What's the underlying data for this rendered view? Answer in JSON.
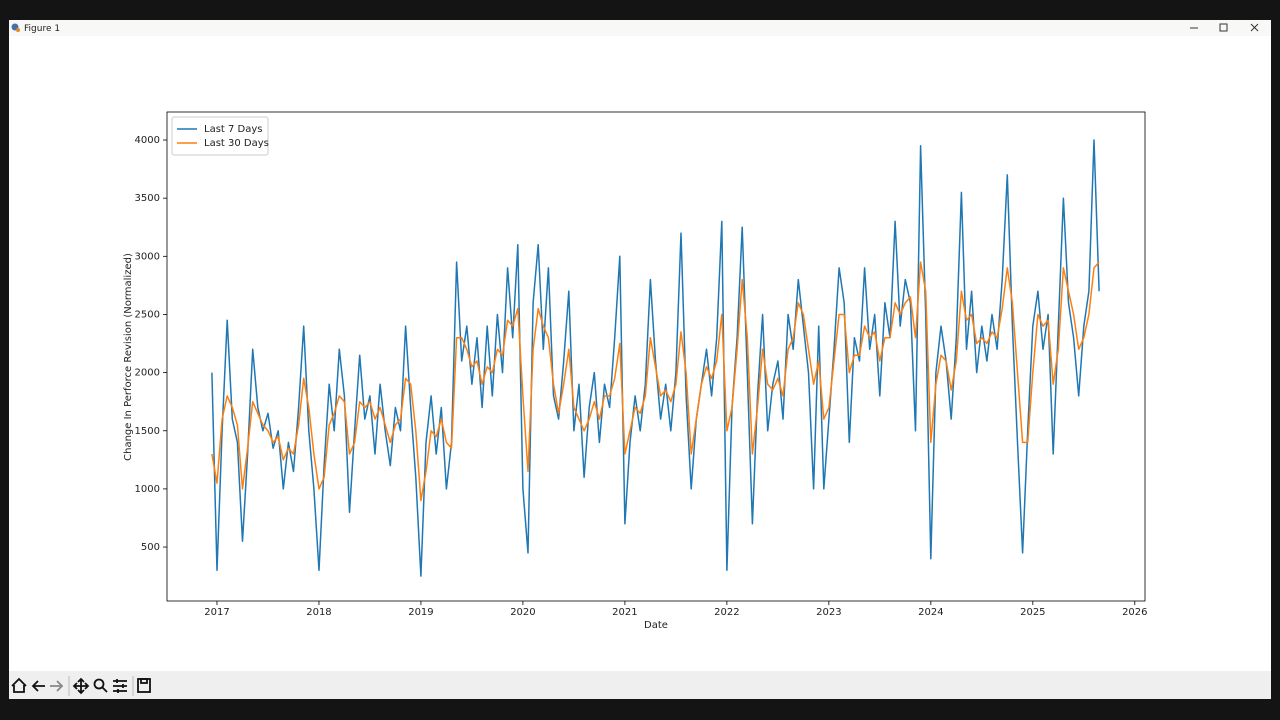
{
  "window": {
    "title": "Figure 1"
  },
  "chart_data": {
    "type": "line",
    "xlabel": "Date",
    "ylabel": "Change In Perforce Revision (Normalized)",
    "legend": "upper left",
    "grid": false,
    "xlim": [
      2016.51,
      2026.1
    ],
    "ylim": [
      36,
      4241
    ],
    "xticks": [
      2017,
      2018,
      2019,
      2020,
      2021,
      2022,
      2023,
      2024,
      2025,
      2026
    ],
    "yticks": [
      500,
      1000,
      1500,
      2000,
      2500,
      3000,
      3500,
      4000
    ],
    "x": [
      2016.95,
      2017.0,
      2017.05,
      2017.1,
      2017.15,
      2017.2,
      2017.25,
      2017.3,
      2017.35,
      2017.4,
      2017.45,
      2017.5,
      2017.55,
      2017.6,
      2017.65,
      2017.7,
      2017.75,
      2017.8,
      2017.85,
      2017.9,
      2017.95,
      2018.0,
      2018.05,
      2018.1,
      2018.15,
      2018.2,
      2018.25,
      2018.3,
      2018.35,
      2018.4,
      2018.45,
      2018.5,
      2018.55,
      2018.6,
      2018.65,
      2018.7,
      2018.75,
      2018.8,
      2018.85,
      2018.9,
      2018.95,
      2019.0,
      2019.05,
      2019.1,
      2019.15,
      2019.2,
      2019.25,
      2019.3,
      2019.35,
      2019.4,
      2019.45,
      2019.5,
      2019.55,
      2019.6,
      2019.65,
      2019.7,
      2019.75,
      2019.8,
      2019.85,
      2019.9,
      2019.95,
      2020.0,
      2020.05,
      2020.1,
      2020.15,
      2020.2,
      2020.25,
      2020.3,
      2020.35,
      2020.4,
      2020.45,
      2020.5,
      2020.55,
      2020.6,
      2020.65,
      2020.7,
      2020.75,
      2020.8,
      2020.85,
      2020.9,
      2020.95,
      2021.0,
      2021.05,
      2021.1,
      2021.15,
      2021.2,
      2021.25,
      2021.3,
      2021.35,
      2021.4,
      2021.45,
      2021.5,
      2021.55,
      2021.6,
      2021.65,
      2021.7,
      2021.75,
      2021.8,
      2021.85,
      2021.9,
      2021.95,
      2022.0,
      2022.05,
      2022.1,
      2022.15,
      2022.2,
      2022.25,
      2022.3,
      2022.35,
      2022.4,
      2022.45,
      2022.5,
      2022.55,
      2022.6,
      2022.65,
      2022.7,
      2022.75,
      2022.8,
      2022.85,
      2022.9,
      2022.95,
      2023.0,
      2023.05,
      2023.1,
      2023.15,
      2023.2,
      2023.25,
      2023.3,
      2023.35,
      2023.4,
      2023.45,
      2023.5,
      2023.55,
      2023.6,
      2023.65,
      2023.7,
      2023.75,
      2023.8,
      2023.85,
      2023.9,
      2023.95,
      2024.0,
      2024.05,
      2024.1,
      2024.15,
      2024.2,
      2024.25,
      2024.3,
      2024.35,
      2024.4,
      2024.45,
      2024.5,
      2024.55,
      2024.6,
      2024.65,
      2024.7,
      2024.75,
      2024.8,
      2024.85,
      2024.9,
      2024.95,
      2025.0,
      2025.05,
      2025.1,
      2025.15,
      2025.2,
      2025.25,
      2025.3,
      2025.35,
      2025.4,
      2025.45,
      2025.5,
      2025.55,
      2025.6,
      2025.65
    ],
    "series": [
      {
        "name": "Last 7 Days",
        "color": "#1f77b4",
        "values": [
          2000,
          300,
          1500,
          2450,
          1600,
          1400,
          550,
          1300,
          2200,
          1700,
          1500,
          1650,
          1350,
          1500,
          1000,
          1400,
          1150,
          1700,
          2400,
          1500,
          1000,
          300,
          1200,
          1900,
          1500,
          2200,
          1800,
          800,
          1500,
          2150,
          1600,
          1800,
          1300,
          1900,
          1500,
          1200,
          1700,
          1500,
          2400,
          1700,
          1100,
          250,
          1400,
          1800,
          1300,
          1700,
          1000,
          1400,
          2950,
          2100,
          2400,
          1900,
          2300,
          1700,
          2400,
          1800,
          2500,
          2000,
          2900,
          2300,
          3100,
          1000,
          450,
          2600,
          3100,
          2200,
          2900,
          1800,
          1600,
          2100,
          2700,
          1500,
          1900,
          1100,
          1700,
          2000,
          1400,
          1900,
          1700,
          2300,
          3000,
          700,
          1400,
          1800,
          1500,
          1900,
          2800,
          2100,
          1600,
          1900,
          1500,
          2000,
          3200,
          1800,
          1000,
          1600,
          1900,
          2200,
          1800,
          2300,
          3300,
          300,
          1700,
          2300,
          3250,
          2000,
          700,
          1800,
          2500,
          1500,
          1900,
          2100,
          1600,
          2500,
          2200,
          2800,
          2400,
          2000,
          1000,
          2400,
          1000,
          1600,
          2200,
          2900,
          2600,
          1400,
          2300,
          2100,
          2900,
          2200,
          2500,
          1800,
          2600,
          2300,
          3300,
          2400,
          2800,
          2600,
          1500,
          3950,
          2500,
          400,
          2000,
          2400,
          2100,
          1600,
          2300,
          3550,
          2200,
          2700,
          2000,
          2400,
          2100,
          2500,
          2200,
          2800,
          3700,
          2400,
          1400,
          450,
          1500,
          2400,
          2700,
          2200,
          2500,
          1300,
          2400,
          3500,
          2600,
          2300,
          1800,
          2400,
          2700,
          4000,
          2700
        ]
      },
      {
        "name": "Last 30 Days",
        "color": "#ff7f0e",
        "values": [
          1300,
          1050,
          1600,
          1800,
          1700,
          1550,
          1000,
          1350,
          1750,
          1650,
          1550,
          1500,
          1400,
          1450,
          1250,
          1350,
          1300,
          1550,
          1950,
          1700,
          1300,
          1000,
          1100,
          1550,
          1650,
          1800,
          1750,
          1300,
          1400,
          1750,
          1700,
          1750,
          1600,
          1700,
          1550,
          1400,
          1550,
          1600,
          1950,
          1900,
          1500,
          900,
          1150,
          1500,
          1450,
          1600,
          1400,
          1350,
          2300,
          2300,
          2200,
          2050,
          2100,
          1900,
          2050,
          2000,
          2200,
          2150,
          2450,
          2400,
          2550,
          1800,
          1150,
          2200,
          2550,
          2400,
          2300,
          1900,
          1650,
          1900,
          2200,
          1700,
          1600,
          1500,
          1600,
          1750,
          1600,
          1800,
          1800,
          1950,
          2250,
          1300,
          1500,
          1700,
          1650,
          1800,
          2300,
          2050,
          1800,
          1850,
          1750,
          1900,
          2350,
          2000,
          1300,
          1600,
          1900,
          2050,
          1950,
          2100,
          2500,
          1500,
          1700,
          2200,
          2800,
          2300,
          1300,
          1700,
          2200,
          1900,
          1850,
          1950,
          1800,
          2200,
          2300,
          2600,
          2500,
          2200,
          1900,
          2100,
          1600,
          1700,
          2100,
          2500,
          2500,
          2000,
          2150,
          2150,
          2400,
          2300,
          2350,
          2100,
          2300,
          2300,
          2600,
          2500,
          2600,
          2650,
          2300,
          2950,
          2700,
          1400,
          1900,
          2150,
          2100,
          1850,
          2100,
          2700,
          2450,
          2500,
          2250,
          2300,
          2250,
          2350,
          2300,
          2550,
          2900,
          2600,
          2000,
          1400,
          1400,
          2000,
          2500,
          2400,
          2450,
          1900,
          2200,
          2900,
          2700,
          2500,
          2200,
          2300,
          2500,
          2900,
          2950
        ]
      }
    ]
  }
}
